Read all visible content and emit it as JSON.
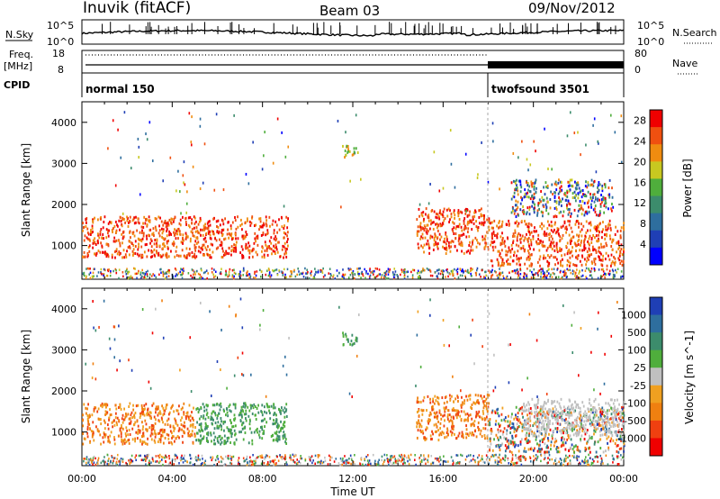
{
  "header": {
    "station": "Inuvik (fitACF)",
    "beam": "Beam 03",
    "date": "09/Nov/2012"
  },
  "top_panels": {
    "nsky_label": "N.Sky",
    "nsearch_label": "N.Search",
    "nsky_ticks": [
      "10^5",
      "10^0"
    ],
    "nsearch_ticks": [
      "10^5",
      "10^0"
    ],
    "freq_label": "Freq.",
    "freq_unit": "[MHz]",
    "freq_ticks": [
      "18",
      "8"
    ],
    "nave_label": "Nave",
    "nave_ticks": [
      "80",
      "0"
    ],
    "cpid_label": "CPID",
    "cpid_modes": [
      {
        "name": "normal 150",
        "start_hour": 0
      },
      {
        "name": "twofsound 3501",
        "start_hour": 18
      }
    ]
  },
  "colors": {
    "power_scale": [
      "#0000ff",
      "#1f3fb5",
      "#2e6e9e",
      "#3c8c6c",
      "#4fae3c",
      "#c8c820",
      "#f08c10",
      "#f05010",
      "#f00000"
    ],
    "velocity_scale": [
      "#1f3fb5",
      "#2e6e9e",
      "#3c8c6c",
      "#4fae3c",
      "#c0c0c0",
      "#f0a020",
      "#f08010",
      "#f04010",
      "#f00000"
    ]
  },
  "chart_data": [
    {
      "type": "heatmap",
      "name": "power",
      "ylabel": "Slant Range [km]",
      "xlabel": "",
      "x_ticks": [
        "00:00",
        "04:00",
        "08:00",
        "12:00",
        "16:00",
        "20:00",
        "00:00"
      ],
      "xlim_hours": [
        0,
        24
      ],
      "y_ticks": [
        "1000",
        "2000",
        "3000",
        "4000"
      ],
      "ylim_km": [
        180,
        4500
      ],
      "colorbar": {
        "label": "Power [dB]",
        "ticks": [
          "4",
          "8",
          "12",
          "16",
          "20",
          "24",
          "28"
        ],
        "range": [
          0,
          30
        ]
      },
      "echo_regions": [
        {
          "t0": 0.0,
          "t1": 9.1,
          "r0": 700,
          "r1": 1700,
          "level": "high"
        },
        {
          "t0": 11.5,
          "t1": 12.2,
          "r0": 3100,
          "r1": 3450,
          "level": "mid"
        },
        {
          "t0": 14.8,
          "t1": 18.0,
          "r0": 800,
          "r1": 1900,
          "level": "high"
        },
        {
          "t0": 18.0,
          "t1": 24.0,
          "r0": 500,
          "r1": 1600,
          "level": "high"
        },
        {
          "t0": 19.0,
          "t1": 23.5,
          "r0": 1700,
          "r1": 2600,
          "level": "mixed"
        }
      ]
    },
    {
      "type": "heatmap",
      "name": "velocity",
      "ylabel": "Slant Range [km]",
      "xlabel": "Time UT",
      "x_ticks": [
        "00:00",
        "04:00",
        "08:00",
        "12:00",
        "16:00",
        "20:00",
        "00:00"
      ],
      "xlim_hours": [
        0,
        24
      ],
      "y_ticks": [
        "1000",
        "2000",
        "3000",
        "4000"
      ],
      "ylim_km": [
        180,
        4500
      ],
      "colorbar": {
        "label": "Velocity [m s^-1]",
        "ticks": [
          "1000",
          "500",
          "100",
          "25",
          "-25",
          "-100",
          "-500",
          "-1000"
        ]
      },
      "echo_regions": [
        {
          "t0": 0.0,
          "t1": 5.0,
          "r0": 700,
          "r1": 1700,
          "level": "negative"
        },
        {
          "t0": 5.0,
          "t1": 9.1,
          "r0": 700,
          "r1": 1700,
          "level": "positive"
        },
        {
          "t0": 11.5,
          "t1": 12.2,
          "r0": 3100,
          "r1": 3450,
          "level": "positive"
        },
        {
          "t0": 14.8,
          "t1": 18.0,
          "r0": 800,
          "r1": 1900,
          "level": "negative"
        },
        {
          "t0": 18.0,
          "t1": 24.0,
          "r0": 500,
          "r1": 1600,
          "level": "mixed"
        },
        {
          "t0": 19.5,
          "t1": 24.0,
          "r0": 900,
          "r1": 1800,
          "level": "zero"
        }
      ]
    }
  ]
}
